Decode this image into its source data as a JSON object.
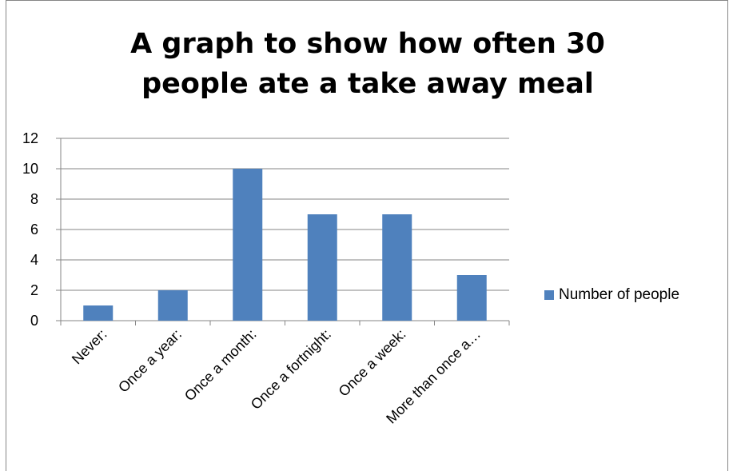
{
  "chart_data": {
    "type": "bar",
    "title_lines": [
      "A graph to show  how often 30",
      "people ate a take away meal"
    ],
    "categories": [
      "Never:",
      "Once a year:",
      "Once a month:",
      "Once a fortnight:",
      "Once a week:",
      "More than once a…"
    ],
    "series": [
      {
        "name": "Number of people",
        "values": [
          1,
          2,
          10,
          7,
          7,
          3
        ],
        "color": "#4f81bd"
      }
    ],
    "yticks": [
      "0",
      "2",
      "4",
      "6",
      "8",
      "10",
      "12"
    ],
    "ylim": [
      0,
      12
    ],
    "grid": true,
    "legend_position": "right"
  }
}
